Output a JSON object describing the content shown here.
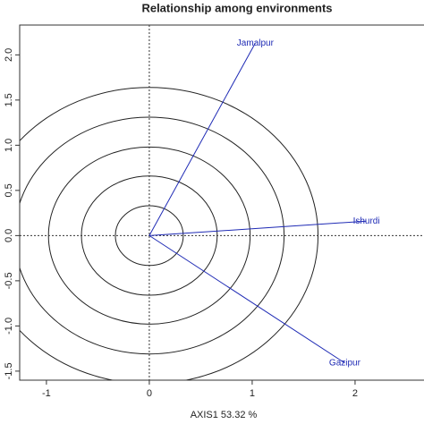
{
  "chart_data": {
    "type": "biplot",
    "title": "Relationship among environments",
    "x_label": "AXIS1 53.32 %",
    "xlim": [
      -1.26,
      2.67
    ],
    "ylim": [
      -1.6,
      2.33
    ],
    "xticks": [
      -1,
      0,
      1,
      2
    ],
    "yticks": [
      {
        "value": -1.5,
        "label": "-1.5"
      },
      {
        "value": -1,
        "label": "-1.0"
      },
      {
        "value": -0.5,
        "label": "-0.5"
      },
      {
        "value": 0,
        "label": "0.0"
      },
      {
        "value": 0.5,
        "label": "0.5"
      },
      {
        "value": 1,
        "label": "1.0"
      },
      {
        "value": 1.5,
        "label": "1.5"
      },
      {
        "value": 2,
        "label": "2.0"
      }
    ],
    "circles": [
      0.33,
      0.66,
      0.98,
      1.31,
      1.64
    ],
    "color": "#1f2bb5",
    "points": [
      {
        "label": "Jamalpur",
        "x": 1.03,
        "y": 2.13
      },
      {
        "label": "Ishurdi",
        "x": 2.11,
        "y": 0.16
      },
      {
        "label": "Gazipur",
        "x": 1.9,
        "y": -1.41
      }
    ]
  }
}
